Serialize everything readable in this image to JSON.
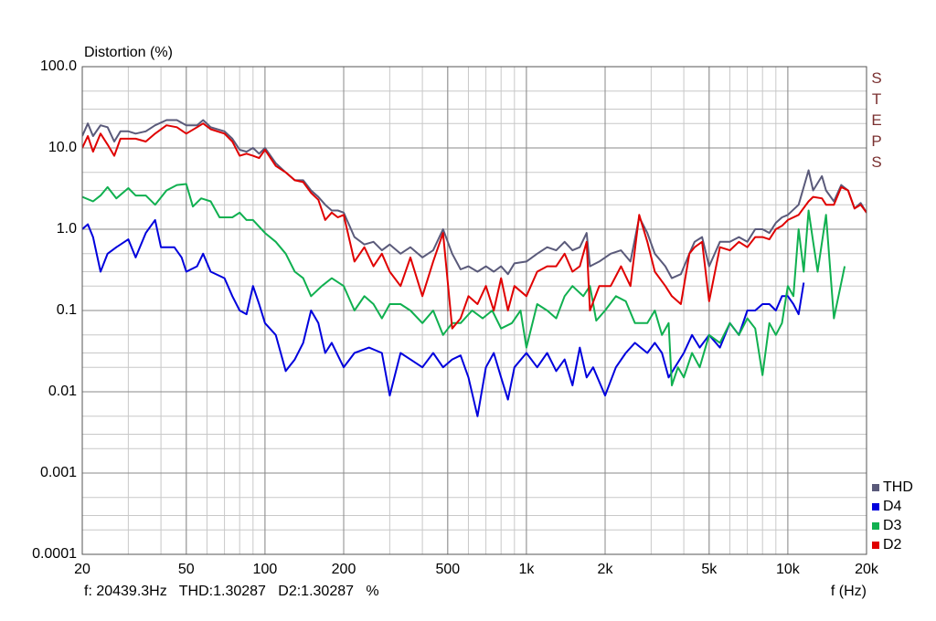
{
  "chart_data": {
    "type": "line",
    "y_label": "Distortion (%)",
    "x_label": "f (Hz)",
    "watermark": "STEPS",
    "cursor_readout": "f: 20439.3Hz   THD:1.30287   D2:1.30287   %",
    "log_x": true,
    "log_y": true,
    "grid": true,
    "legend": "lower right",
    "xlim": [
      20,
      20000
    ],
    "ylim": [
      0.0001,
      100
    ],
    "xticks": [
      20,
      50,
      100,
      200,
      500,
      {
        "value": 1000,
        "label": "1k"
      },
      {
        "value": 2000,
        "label": "2k"
      },
      {
        "value": 5000,
        "label": "5k"
      },
      {
        "value": 10000,
        "label": "10k"
      },
      {
        "value": 20000,
        "label": "20k"
      }
    ],
    "yticks": [
      {
        "value": 100,
        "label": "100.0"
      },
      {
        "value": 10,
        "label": "10.0"
      },
      {
        "value": 1,
        "label": "1.0"
      },
      0.1,
      0.01,
      0.001,
      0.0001
    ],
    "series": [
      {
        "name": "THD",
        "color": "#5a5a7a",
        "x": [
          20,
          21,
          22,
          23.5,
          25,
          26.5,
          28,
          30,
          32,
          35,
          38,
          42,
          46,
          50,
          55,
          58,
          62,
          70,
          75,
          80,
          85,
          90,
          95,
          100,
          110,
          120,
          130,
          140,
          150,
          160,
          170,
          180,
          190,
          200,
          220,
          240,
          260,
          280,
          300,
          330,
          360,
          400,
          440,
          480,
          520,
          560,
          600,
          650,
          700,
          750,
          800,
          850,
          900,
          1000,
          1100,
          1200,
          1300,
          1400,
          1500,
          1600,
          1700,
          1750,
          1900,
          2100,
          2300,
          2500,
          2700,
          2900,
          3100,
          3400,
          3600,
          3900,
          4200,
          4400,
          4700,
          5000,
          5500,
          6000,
          6500,
          7000,
          7500,
          8000,
          8500,
          9000,
          9500,
          10000,
          11000,
          12000,
          12500,
          13500,
          14000,
          15000,
          16000,
          17000,
          18000,
          19000,
          20000
        ],
        "values": [
          14,
          20,
          14,
          19,
          18,
          12,
          16,
          16,
          15,
          16,
          19,
          22,
          22,
          19,
          19,
          22,
          18,
          16,
          13,
          9.5,
          9,
          10,
          8.5,
          10,
          6.5,
          5,
          4,
          4,
          3,
          2.5,
          2,
          1.7,
          1.7,
          1.6,
          0.8,
          0.65,
          0.7,
          0.55,
          0.65,
          0.5,
          0.6,
          0.45,
          0.55,
          1.0,
          0.5,
          0.32,
          0.35,
          0.3,
          0.35,
          0.3,
          0.35,
          0.28,
          0.38,
          0.4,
          0.5,
          0.6,
          0.55,
          0.7,
          0.55,
          0.6,
          0.9,
          0.35,
          0.4,
          0.5,
          0.55,
          0.4,
          1.4,
          0.9,
          0.5,
          0.35,
          0.25,
          0.28,
          0.5,
          0.7,
          0.8,
          0.35,
          0.7,
          0.7,
          0.8,
          0.7,
          1.0,
          1.0,
          0.9,
          1.2,
          1.4,
          1.5,
          2.0,
          5.3,
          3,
          4.5,
          3,
          2.2,
          3.5,
          3.0,
          1.8,
          2.1,
          1.6
        ]
      },
      {
        "name": "D4",
        "color": "#0000dd",
        "x": [
          20,
          21,
          22,
          23.5,
          25,
          27,
          30,
          32,
          35,
          38,
          40,
          45,
          48,
          50,
          55,
          58,
          62,
          70,
          75,
          80,
          85,
          90,
          95,
          100,
          110,
          120,
          130,
          140,
          150,
          160,
          170,
          180,
          200,
          220,
          250,
          280,
          300,
          330,
          360,
          400,
          440,
          480,
          520,
          560,
          600,
          650,
          700,
          750,
          800,
          850,
          900,
          1000,
          1100,
          1200,
          1300,
          1400,
          1500,
          1600,
          1700,
          1800,
          2000,
          2200,
          2400,
          2600,
          2900,
          3100,
          3300,
          3500,
          3700,
          4000,
          4300,
          4600,
          5000,
          5500,
          6000,
          6500,
          7000,
          7500,
          8000,
          8500,
          9000,
          9500,
          10000,
          10500,
          11000,
          11500
        ],
        "values": [
          1.0,
          1.15,
          0.8,
          0.3,
          0.5,
          0.6,
          0.75,
          0.45,
          0.9,
          1.3,
          0.6,
          0.6,
          0.45,
          0.3,
          0.35,
          0.5,
          0.3,
          0.25,
          0.15,
          0.1,
          0.09,
          0.2,
          0.12,
          0.07,
          0.05,
          0.018,
          0.025,
          0.04,
          0.1,
          0.07,
          0.03,
          0.04,
          0.02,
          0.03,
          0.035,
          0.03,
          0.009,
          0.03,
          0.025,
          0.02,
          0.03,
          0.02,
          0.025,
          0.028,
          0.015,
          0.005,
          0.02,
          0.03,
          0.015,
          0.008,
          0.02,
          0.03,
          0.02,
          0.03,
          0.018,
          0.025,
          0.012,
          0.035,
          0.015,
          0.02,
          0.009,
          0.02,
          0.03,
          0.04,
          0.03,
          0.04,
          0.03,
          0.015,
          0.02,
          0.03,
          0.05,
          0.035,
          0.05,
          0.035,
          0.07,
          0.05,
          0.1,
          0.1,
          0.12,
          0.12,
          0.1,
          0.15,
          0.15,
          0.12,
          0.09,
          0.22
        ]
      },
      {
        "name": "D3",
        "color": "#10b050",
        "x": [
          20,
          22,
          23.5,
          25,
          27,
          30,
          32,
          35,
          38,
          42,
          46,
          50,
          53,
          57,
          62,
          67,
          75,
          80,
          85,
          90,
          100,
          110,
          120,
          130,
          140,
          150,
          165,
          180,
          200,
          220,
          240,
          260,
          280,
          300,
          330,
          360,
          400,
          440,
          480,
          520,
          560,
          620,
          680,
          740,
          800,
          880,
          950,
          1000,
          1100,
          1200,
          1300,
          1400,
          1500,
          1650,
          1750,
          1850,
          2000,
          2200,
          2400,
          2600,
          2900,
          3100,
          3300,
          3500,
          3600,
          3800,
          4000,
          4300,
          4600,
          5000,
          5500,
          6000,
          6500,
          7000,
          7500,
          8000,
          8500,
          9000,
          9500,
          10000,
          10500,
          11000,
          11500,
          12000,
          12500,
          13000,
          14000,
          15000,
          16500
        ],
        "values": [
          2.5,
          2.2,
          2.6,
          3.3,
          2.4,
          3.2,
          2.6,
          2.6,
          2.0,
          3.0,
          3.5,
          3.6,
          1.9,
          2.4,
          2.2,
          1.4,
          1.4,
          1.6,
          1.3,
          1.3,
          0.9,
          0.7,
          0.5,
          0.3,
          0.25,
          0.15,
          0.2,
          0.25,
          0.2,
          0.1,
          0.15,
          0.12,
          0.08,
          0.12,
          0.12,
          0.1,
          0.07,
          0.1,
          0.05,
          0.07,
          0.07,
          0.1,
          0.08,
          0.1,
          0.06,
          0.07,
          0.1,
          0.035,
          0.12,
          0.1,
          0.08,
          0.15,
          0.2,
          0.15,
          0.2,
          0.075,
          0.1,
          0.15,
          0.13,
          0.07,
          0.07,
          0.1,
          0.05,
          0.07,
          0.012,
          0.02,
          0.015,
          0.03,
          0.02,
          0.05,
          0.04,
          0.07,
          0.05,
          0.08,
          0.06,
          0.016,
          0.07,
          0.05,
          0.07,
          0.2,
          0.15,
          1.0,
          0.3,
          1.7,
          0.7,
          0.3,
          1.5,
          0.08,
          0.35
        ]
      },
      {
        "name": "D2",
        "color": "#e00000",
        "x": [
          20,
          21,
          22,
          23.5,
          25,
          26.5,
          28,
          30,
          32,
          35,
          38,
          42,
          46,
          50,
          55,
          58,
          62,
          70,
          75,
          80,
          85,
          90,
          95,
          100,
          110,
          120,
          130,
          140,
          150,
          160,
          170,
          180,
          190,
          200,
          220,
          240,
          260,
          280,
          300,
          330,
          360,
          400,
          440,
          480,
          520,
          560,
          600,
          650,
          700,
          750,
          800,
          850,
          900,
          1000,
          1100,
          1200,
          1300,
          1400,
          1500,
          1600,
          1700,
          1750,
          1900,
          2100,
          2300,
          2500,
          2700,
          2900,
          3100,
          3400,
          3600,
          3900,
          4200,
          4400,
          4700,
          5000,
          5500,
          6000,
          6500,
          7000,
          7500,
          8000,
          8500,
          9000,
          9500,
          10000,
          11000,
          12000,
          12500,
          13500,
          14000,
          15000,
          16000,
          17000,
          18000,
          19000,
          20000
        ],
        "values": [
          10,
          14,
          9,
          15,
          11,
          8,
          13,
          13,
          13,
          12,
          15,
          19,
          18,
          15,
          18,
          20,
          17,
          15,
          12,
          8,
          8.5,
          8,
          7.5,
          9.5,
          6,
          5,
          4,
          3.8,
          2.8,
          2.3,
          1.3,
          1.6,
          1.4,
          1.5,
          0.4,
          0.6,
          0.35,
          0.5,
          0.3,
          0.2,
          0.45,
          0.15,
          0.4,
          0.9,
          0.06,
          0.08,
          0.15,
          0.12,
          0.2,
          0.1,
          0.25,
          0.1,
          0.2,
          0.15,
          0.3,
          0.35,
          0.35,
          0.5,
          0.3,
          0.35,
          0.7,
          0.1,
          0.2,
          0.2,
          0.35,
          0.2,
          1.5,
          0.7,
          0.3,
          0.2,
          0.15,
          0.12,
          0.5,
          0.6,
          0.7,
          0.13,
          0.6,
          0.55,
          0.7,
          0.6,
          0.8,
          0.8,
          0.75,
          1.0,
          1.1,
          1.3,
          1.5,
          2.2,
          2.5,
          2.4,
          2.0,
          2.0,
          3.3,
          3.0,
          1.8,
          2.0,
          1.6
        ]
      }
    ]
  }
}
